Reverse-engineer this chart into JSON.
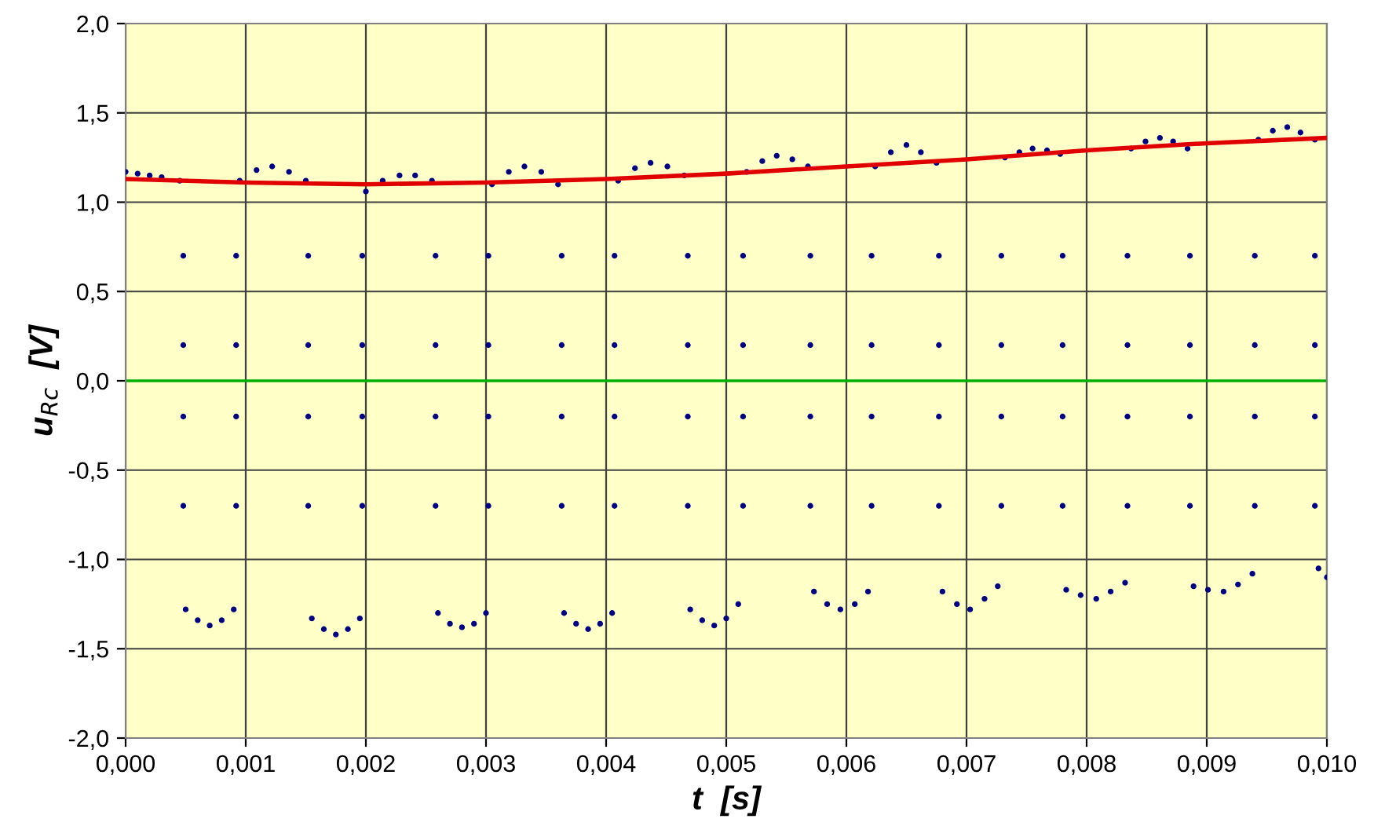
{
  "chart_data": {
    "type": "scatter",
    "xlabel": "t  [s]",
    "ylabel": "u$_{Rc}$  [V]",
    "xlim": [
      0,
      0.01
    ],
    "ylim": [
      -2,
      2
    ],
    "xticks": [
      {
        "value": 0,
        "label": "0,000"
      },
      {
        "value": 0.001,
        "label": "0,001"
      },
      {
        "value": 0.002,
        "label": "0,002"
      },
      {
        "value": 0.003,
        "label": "0,003"
      },
      {
        "value": 0.004,
        "label": "0,004"
      },
      {
        "value": 0.005,
        "label": "0,005"
      },
      {
        "value": 0.006,
        "label": "0,006"
      },
      {
        "value": 0.007,
        "label": "0,007"
      },
      {
        "value": 0.008,
        "label": "0,008"
      },
      {
        "value": 0.009,
        "label": "0,009"
      },
      {
        "value": 0.01,
        "label": "0,010"
      }
    ],
    "yticks": [
      {
        "value": -2,
        "label": "-2,0"
      },
      {
        "value": -1.5,
        "label": "-1,5"
      },
      {
        "value": -1,
        "label": "-1,0"
      },
      {
        "value": -0.5,
        "label": "-0,5"
      },
      {
        "value": 0,
        "label": "0,0"
      },
      {
        "value": 0.5,
        "label": "0,5"
      },
      {
        "value": 1,
        "label": "1,0"
      },
      {
        "value": 1.5,
        "label": "1,5"
      },
      {
        "value": 2,
        "label": "2,0"
      }
    ],
    "grid": true,
    "marker": "circle",
    "ref_lines": [
      {
        "axis": "y",
        "value": 0,
        "color": "#00b000"
      }
    ],
    "series": [
      {
        "color": "#000080",
        "x": [
          0,
          0.0001,
          0.0002,
          0.0003,
          0.00045,
          0.00048,
          0.00048,
          0.00048,
          0.00048,
          0.0005,
          0.0006,
          0.0007,
          0.0008,
          0.0009,
          0.00092,
          0.00092,
          0.00092,
          0.00092,
          0.00095,
          0.00109,
          0.00122,
          0.00136,
          0.0015,
          0.00152,
          0.00152,
          0.00152,
          0.00152,
          0.00155,
          0.00165,
          0.00175,
          0.00185,
          0.00195,
          0.00197,
          0.00197,
          0.00197,
          0.00197,
          0.002,
          0.00214,
          0.00228,
          0.00241,
          0.00255,
          0.00258,
          0.00258,
          0.00258,
          0.00258,
          0.0026,
          0.0027,
          0.0028,
          0.0029,
          0.003,
          0.00302,
          0.00302,
          0.00302,
          0.00302,
          0.00305,
          0.00319,
          0.00332,
          0.00346,
          0.0036,
          0.00363,
          0.00363,
          0.00363,
          0.00363,
          0.00365,
          0.00375,
          0.00385,
          0.00395,
          0.00405,
          0.00407,
          0.00407,
          0.00407,
          0.00407,
          0.0041,
          0.00424,
          0.00437,
          0.00451,
          0.00465,
          0.00468,
          0.00468,
          0.00468,
          0.00468,
          0.0047,
          0.0048,
          0.0049,
          0.005,
          0.0051,
          0.00514,
          0.00514,
          0.00514,
          0.00514,
          0.00517,
          0.0053,
          0.00542,
          0.00555,
          0.00568,
          0.0057,
          0.0057,
          0.0057,
          0.0057,
          0.00573,
          0.00584,
          0.00595,
          0.00607,
          0.00618,
          0.00621,
          0.00621,
          0.00621,
          0.00621,
          0.00624,
          0.00637,
          0.0065,
          0.00662,
          0.00675,
          0.00677,
          0.00677,
          0.00677,
          0.00677,
          0.0068,
          0.00692,
          0.00703,
          0.00715,
          0.00726,
          0.00729,
          0.00729,
          0.00729,
          0.00729,
          0.00732,
          0.00744,
          0.00755,
          0.00767,
          0.00778,
          0.0078,
          0.0078,
          0.0078,
          0.0078,
          0.00783,
          0.00795,
          0.00808,
          0.0082,
          0.00832,
          0.00834,
          0.00834,
          0.00834,
          0.00834,
          0.00837,
          0.00849,
          0.00861,
          0.00872,
          0.00884,
          0.00886,
          0.00886,
          0.00886,
          0.00886,
          0.00889,
          0.00901,
          0.00914,
          0.00926,
          0.00938,
          0.0094,
          0.0094,
          0.0094,
          0.0094,
          0.00943,
          0.00955,
          0.00967,
          0.00978,
          0.0099,
          0.0099,
          0.0099,
          0.0099,
          0.0099,
          0.00993,
          0.01
        ],
        "values": [
          1.17,
          1.16,
          1.15,
          1.14,
          1.12,
          0.7,
          0.2,
          -0.2,
          -0.7,
          -1.28,
          -1.34,
          -1.37,
          -1.34,
          -1.28,
          -0.7,
          -0.2,
          0.2,
          0.7,
          1.12,
          1.18,
          1.2,
          1.17,
          1.12,
          0.7,
          0.2,
          -0.2,
          -0.7,
          -1.33,
          -1.39,
          -1.42,
          -1.39,
          -1.33,
          -0.7,
          -0.2,
          0.2,
          0.7,
          1.06,
          1.12,
          1.15,
          1.15,
          1.12,
          0.7,
          0.2,
          -0.2,
          -0.7,
          -1.3,
          -1.36,
          -1.38,
          -1.36,
          -1.3,
          -0.7,
          -0.2,
          0.2,
          0.7,
          1.1,
          1.17,
          1.2,
          1.17,
          1.1,
          0.7,
          0.2,
          -0.2,
          -0.7,
          -1.3,
          -1.36,
          -1.39,
          -1.36,
          -1.3,
          -0.7,
          -0.2,
          0.2,
          0.7,
          1.12,
          1.19,
          1.22,
          1.2,
          1.15,
          0.7,
          0.2,
          -0.2,
          -0.7,
          -1.28,
          -1.34,
          -1.37,
          -1.33,
          -1.25,
          -0.7,
          -0.2,
          0.2,
          0.7,
          1.17,
          1.23,
          1.26,
          1.24,
          1.2,
          0.7,
          0.2,
          -0.2,
          -0.7,
          -1.18,
          -1.25,
          -1.28,
          -1.25,
          -1.18,
          -0.7,
          -0.2,
          0.2,
          0.7,
          1.2,
          1.28,
          1.32,
          1.28,
          1.22,
          0.7,
          0.2,
          -0.2,
          -0.7,
          -1.18,
          -1.25,
          -1.28,
          -1.22,
          -1.15,
          -0.7,
          -0.2,
          0.2,
          0.7,
          1.25,
          1.28,
          1.3,
          1.29,
          1.27,
          0.7,
          0.2,
          -0.2,
          -0.7,
          -1.17,
          -1.2,
          -1.22,
          -1.18,
          -1.13,
          -0.7,
          -0.2,
          0.2,
          0.7,
          1.3,
          1.34,
          1.36,
          1.34,
          1.3,
          0.7,
          0.2,
          -0.2,
          -0.7,
          -1.15,
          -1.17,
          -1.18,
          -1.14,
          -1.08,
          -0.7,
          -0.2,
          0.2,
          0.7,
          1.35,
          1.4,
          1.42,
          1.39,
          1.35,
          0.7,
          0.2,
          -0.2,
          -0.7,
          -1.05,
          -1.1
        ]
      },
      {
        "type": "line",
        "color": "#e00000",
        "marker": "none",
        "x": [
          0,
          0.001,
          0.002,
          0.003,
          0.004,
          0.005,
          0.006,
          0.007,
          0.008,
          0.009,
          0.01
        ],
        "values": [
          1.13,
          1.11,
          1.1,
          1.11,
          1.13,
          1.16,
          1.2,
          1.24,
          1.29,
          1.33,
          1.36
        ]
      }
    ]
  }
}
